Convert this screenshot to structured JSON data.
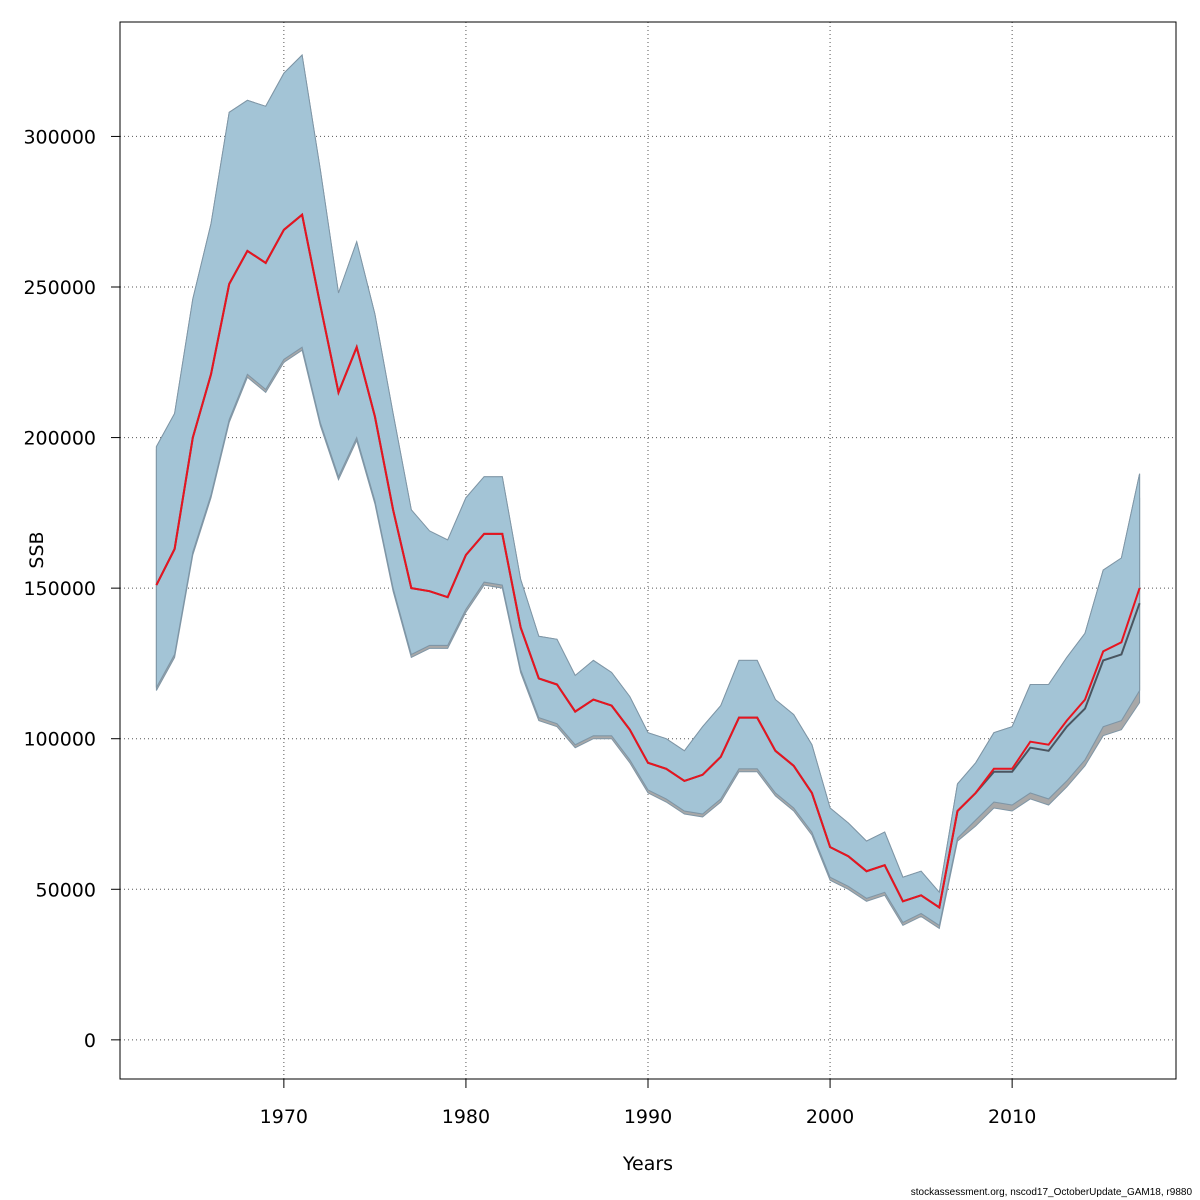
{
  "chart_data": {
    "type": "area",
    "xlabel": "Years",
    "ylabel": "SSB",
    "xlim": [
      1961,
      2019
    ],
    "ylim": [
      -13000,
      338000
    ],
    "xticks": [
      1970,
      1980,
      1990,
      2000,
      2010
    ],
    "yticks": [
      0,
      50000,
      100000,
      150000,
      200000,
      250000,
      300000
    ],
    "grid": true,
    "x": [
      1963,
      1964,
      1965,
      1966,
      1967,
      1968,
      1969,
      1970,
      1971,
      1972,
      1973,
      1974,
      1975,
      1976,
      1977,
      1978,
      1979,
      1980,
      1981,
      1982,
      1983,
      1984,
      1985,
      1986,
      1987,
      1988,
      1989,
      1990,
      1991,
      1992,
      1993,
      1994,
      1995,
      1996,
      1997,
      1998,
      1999,
      2000,
      2001,
      2002,
      2003,
      2004,
      2005,
      2006,
      2007,
      2008,
      2009,
      2010,
      2011,
      2012,
      2013,
      2014,
      2015,
      2016,
      2017
    ],
    "series": [
      {
        "color": "#a3c4d6",
        "upper": [
          197000,
          208000,
          246000,
          271000,
          308000,
          312000,
          310000,
          321000,
          327000,
          289000,
          248000,
          265000,
          241000,
          208000,
          176000,
          169000,
          166000,
          180000,
          187000,
          187000,
          153000,
          134000,
          133000,
          121000,
          126000,
          122000,
          114000,
          102000,
          100000,
          96000,
          104000,
          111000,
          126000,
          126000,
          113000,
          108000,
          98000,
          77000,
          72000,
          66000,
          69000,
          54000,
          56000,
          49000,
          85000,
          92000,
          102000,
          104000,
          118000,
          118000,
          127000,
          135000,
          156000,
          160000,
          188000
        ],
        "lower": [
          117000,
          128000,
          162000,
          181000,
          206000,
          221000,
          216000,
          226000,
          230000,
          205000,
          187000,
          200000,
          179000,
          150000,
          128000,
          131000,
          131000,
          143000,
          152000,
          151000,
          123000,
          107000,
          105000,
          98000,
          101000,
          101000,
          93000,
          83000,
          80000,
          76000,
          75000,
          80000,
          90000,
          90000,
          82000,
          77000,
          69000,
          54000,
          51000,
          47000,
          49000,
          39000,
          42000,
          38000,
          67000,
          73000,
          79000,
          78000,
          82000,
          80000,
          86000,
          93000,
          104000,
          106000,
          116000
        ],
        "values": [
          151000,
          163000,
          200000,
          221000,
          251000,
          262000,
          258000,
          269000,
          274000,
          244000,
          215000,
          230000,
          207000,
          176000,
          150000,
          149000,
          147000,
          161000,
          168000,
          168000,
          137000,
          120000,
          118000,
          109000,
          113000,
          111000,
          103000,
          92000,
          90000,
          86000,
          88000,
          94000,
          107000,
          107000,
          96000,
          91000,
          82000,
          64000,
          61000,
          56000,
          58000,
          46000,
          48000,
          44000,
          76000,
          82000,
          90000,
          90000,
          99000,
          98000,
          106000,
          113000,
          129000,
          132000,
          150000
        ]
      },
      {
        "color": "#bfdcec",
        "upper": [
          197000,
          208000,
          246000,
          271000,
          308000,
          312000,
          310000,
          321000,
          327000,
          289000,
          248000,
          265000,
          241000,
          208000,
          176000,
          169000,
          166000,
          180000,
          187000,
          187000,
          153000,
          134000,
          133000,
          121000,
          126000,
          122000,
          114000,
          102000,
          100000,
          96000,
          104000,
          111000,
          126000,
          126000,
          113000,
          108000,
          98000,
          77000,
          72000,
          66000,
          69000,
          54000,
          56000,
          49000,
          85000,
          92000,
          102000,
          104000,
          118000,
          118000,
          127000,
          135000,
          156000,
          160000,
          188000
        ],
        "lower": [
          117000,
          128000,
          162000,
          181000,
          206000,
          221000,
          216000,
          226000,
          230000,
          205000,
          187000,
          200000,
          179000,
          150000,
          128000,
          131000,
          131000,
          143000,
          152000,
          151000,
          123000,
          107000,
          105000,
          98000,
          101000,
          101000,
          93000,
          83000,
          80000,
          76000,
          75000,
          80000,
          90000,
          90000,
          82000,
          77000,
          69000,
          54000,
          51000,
          47000,
          49000,
          39000,
          42000,
          38000,
          67000,
          73000,
          79000,
          78000,
          82000,
          80000,
          86000,
          93000,
          104000,
          106000,
          116000
        ],
        "values": [
          151000,
          163000,
          200000,
          221000,
          251000,
          262000,
          258000,
          269000,
          274000,
          244000,
          215000,
          230000,
          207000,
          176000,
          150000,
          149000,
          147000,
          161000,
          168000,
          168000,
          137000,
          120000,
          118000,
          109000,
          113000,
          111000,
          103000,
          92000,
          90000,
          86000,
          88000,
          94000,
          107000,
          107000,
          96000,
          91000,
          82000,
          64000,
          61000,
          56000,
          58000,
          46000,
          48000,
          44000,
          76000,
          82000,
          90000,
          90000,
          99000,
          98000,
          106000,
          113000,
          129000,
          132000,
          150000
        ]
      },
      {
        "color": "#a8a8a8",
        "upper": [
          196000,
          207000,
          245000,
          270000,
          306000,
          310000,
          308000,
          319000,
          325000,
          288000,
          247000,
          264000,
          240000,
          207000,
          175000,
          168000,
          165000,
          179000,
          186000,
          186000,
          152000,
          133000,
          132000,
          120000,
          125000,
          121000,
          113000,
          101000,
          99000,
          95000,
          103000,
          110000,
          125000,
          125000,
          112000,
          107000,
          97000,
          76000,
          71000,
          65000,
          68000,
          53000,
          55000,
          48000,
          84000,
          90000,
          99000,
          101000,
          115000,
          115000,
          123000,
          130000,
          150000,
          153000,
          180000
        ],
        "lower": [
          116000,
          127000,
          161000,
          180000,
          205000,
          220000,
          215000,
          225000,
          229000,
          204000,
          186000,
          199000,
          178000,
          149000,
          127000,
          130000,
          130000,
          142000,
          151000,
          150000,
          122000,
          106000,
          104000,
          97000,
          100000,
          100000,
          92000,
          82000,
          79000,
          75000,
          74000,
          79000,
          89000,
          89000,
          81000,
          76000,
          68000,
          53000,
          50000,
          46000,
          48000,
          38000,
          41000,
          37000,
          66000,
          71000,
          77000,
          76000,
          80000,
          78000,
          84000,
          91000,
          101000,
          103000,
          112000
        ],
        "values": [
          151000,
          163000,
          200000,
          221000,
          251000,
          262000,
          258000,
          269000,
          274000,
          244000,
          215000,
          230000,
          207000,
          176000,
          150000,
          149000,
          147000,
          161000,
          168000,
          168000,
          137000,
          120000,
          118000,
          109000,
          113000,
          111000,
          103000,
          92000,
          90000,
          86000,
          88000,
          94000,
          107000,
          107000,
          96000,
          91000,
          82000,
          64000,
          61000,
          56000,
          58000,
          46000,
          48000,
          44000,
          76000,
          82000,
          89000,
          89000,
          97000,
          96000,
          104000,
          110000,
          126000,
          128000,
          145000
        ]
      }
    ],
    "line_colors": {
      "main": "#e8141f",
      "dark": "#4a5560",
      "band_edge": "#7f96a6"
    }
  },
  "caption": "stockassessment.org, nscod17_OctoberUpdate_GAM18, r9880"
}
